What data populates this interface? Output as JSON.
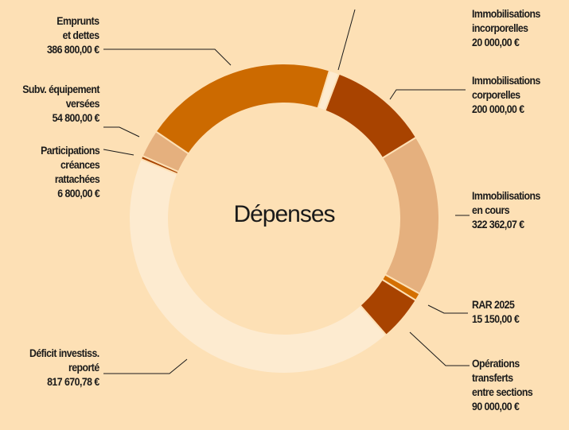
{
  "chart_data": {
    "type": "donut",
    "title": "Dépenses",
    "categories": [
      "Immobilisations\nincorporelles",
      "Immobilisations\ncorporelles",
      "Immobilisations\nen cours",
      "RAR 2025",
      "Opérations\ntransferts\nentre sections",
      "Déficit investiss.\nreporté",
      "Participations\ncréances\nrattachées",
      "Subv. équipement\nversées",
      "Emprunts\net dettes"
    ],
    "values": [
      20000,
      200000,
      322362.07,
      15150,
      90000,
      817670.78,
      6800,
      54800,
      386800
    ],
    "value_labels": [
      "20 000,00 €",
      "200 000,00 €",
      "322 362,07 €",
      "15 150,00 €",
      "90 000,00 €",
      "817 670,78 €",
      "6 800,00 €",
      "54 800,00 €",
      "386 800,00 €"
    ],
    "colors": [
      "#fdebd0",
      "#a84300",
      "#e5b07e",
      "#d46f00",
      "#a84300",
      "#fdebd0",
      "#a84300",
      "#e5b07e",
      "#cc6a00"
    ]
  }
}
